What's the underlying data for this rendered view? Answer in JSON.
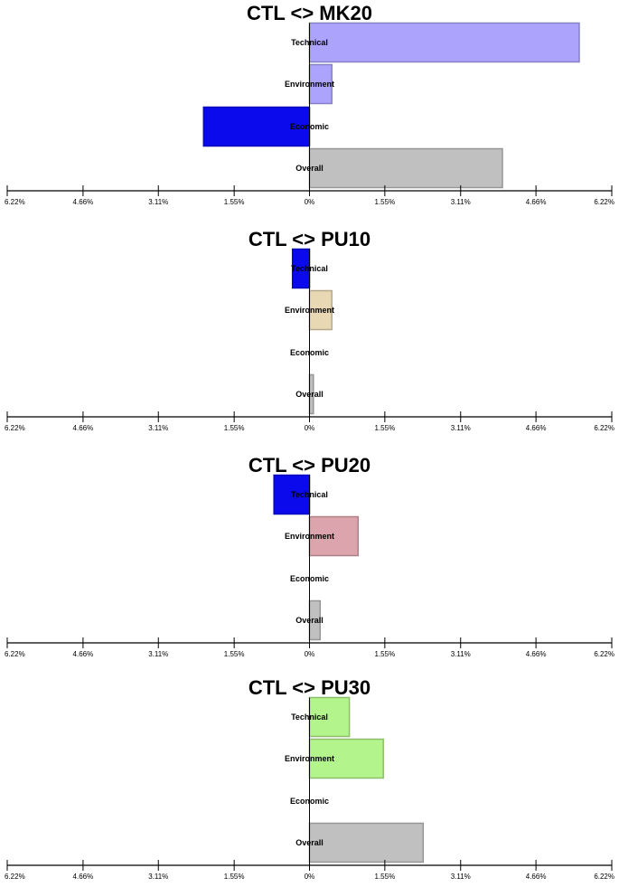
{
  "chart_data": [
    {
      "type": "bar",
      "orientation": "horizontal",
      "title": "CTL <> MK20",
      "categories": [
        "Technical",
        "Environment",
        "Economic",
        "Overall"
      ],
      "values": [
        5.55,
        0.46,
        -2.18,
        3.97
      ],
      "bar_colors": [
        "#aca4fc",
        "#aca4fc",
        "#0a0aec",
        "#c0c0c0"
      ],
      "xlim": [
        -6.22,
        6.22
      ],
      "tick_values": [
        -6.22,
        -4.66,
        -3.11,
        -1.55,
        0,
        1.55,
        3.11,
        4.66,
        6.22
      ],
      "tick_labels": [
        "6.22%",
        "4.66%",
        "3.11%",
        "1.55%",
        "0%",
        "1.55%",
        "3.11%",
        "4.66%",
        "6.22%"
      ]
    },
    {
      "type": "bar",
      "orientation": "horizontal",
      "title": "CTL <> PU10",
      "categories": [
        "Technical",
        "Environment",
        "Economic",
        "Overall"
      ],
      "values": [
        -0.35,
        0.46,
        0,
        0.08
      ],
      "bar_colors": [
        "#0a0aec",
        "#e8d8b4",
        "#ffffff",
        "#c0c0c0"
      ],
      "xlim": [
        -6.22,
        6.22
      ],
      "tick_values": [
        -6.22,
        -4.66,
        -3.11,
        -1.55,
        0,
        1.55,
        3.11,
        4.66,
        6.22
      ],
      "tick_labels": [
        "6.22%",
        "4.66%",
        "3.11%",
        "1.55%",
        "0%",
        "1.55%",
        "3.11%",
        "4.66%",
        "6.22%"
      ]
    },
    {
      "type": "bar",
      "orientation": "horizontal",
      "title": "CTL <> PU20",
      "categories": [
        "Technical",
        "Environment",
        "Economic",
        "Overall"
      ],
      "values": [
        -0.73,
        1.0,
        0,
        0.22
      ],
      "bar_colors": [
        "#0a0aec",
        "#dca4ac",
        "#ffffff",
        "#c0c0c0"
      ],
      "xlim": [
        -6.22,
        6.22
      ],
      "tick_values": [
        -6.22,
        -4.66,
        -3.11,
        -1.55,
        0,
        1.55,
        3.11,
        4.66,
        6.22
      ],
      "tick_labels": [
        "6.22%",
        "4.66%",
        "3.11%",
        "1.55%",
        "0%",
        "1.55%",
        "3.11%",
        "4.66%",
        "6.22%"
      ]
    },
    {
      "type": "bar",
      "orientation": "horizontal",
      "title": "CTL <> PU30",
      "categories": [
        "Technical",
        "Environment",
        "Economic",
        "Overall"
      ],
      "values": [
        0.82,
        1.52,
        0,
        2.34
      ],
      "bar_colors": [
        "#b4f48c",
        "#b4f48c",
        "#ffffff",
        "#c0c0c0"
      ],
      "xlim": [
        -6.22,
        6.22
      ],
      "tick_values": [
        -6.22,
        -4.66,
        -3.11,
        -1.55,
        0,
        1.55,
        3.11,
        4.66,
        6.22
      ],
      "tick_labels": [
        "6.22%",
        "4.66%",
        "3.11%",
        "1.55%",
        "0%",
        "1.55%",
        "3.11%",
        "4.66%",
        "6.22%"
      ]
    }
  ]
}
